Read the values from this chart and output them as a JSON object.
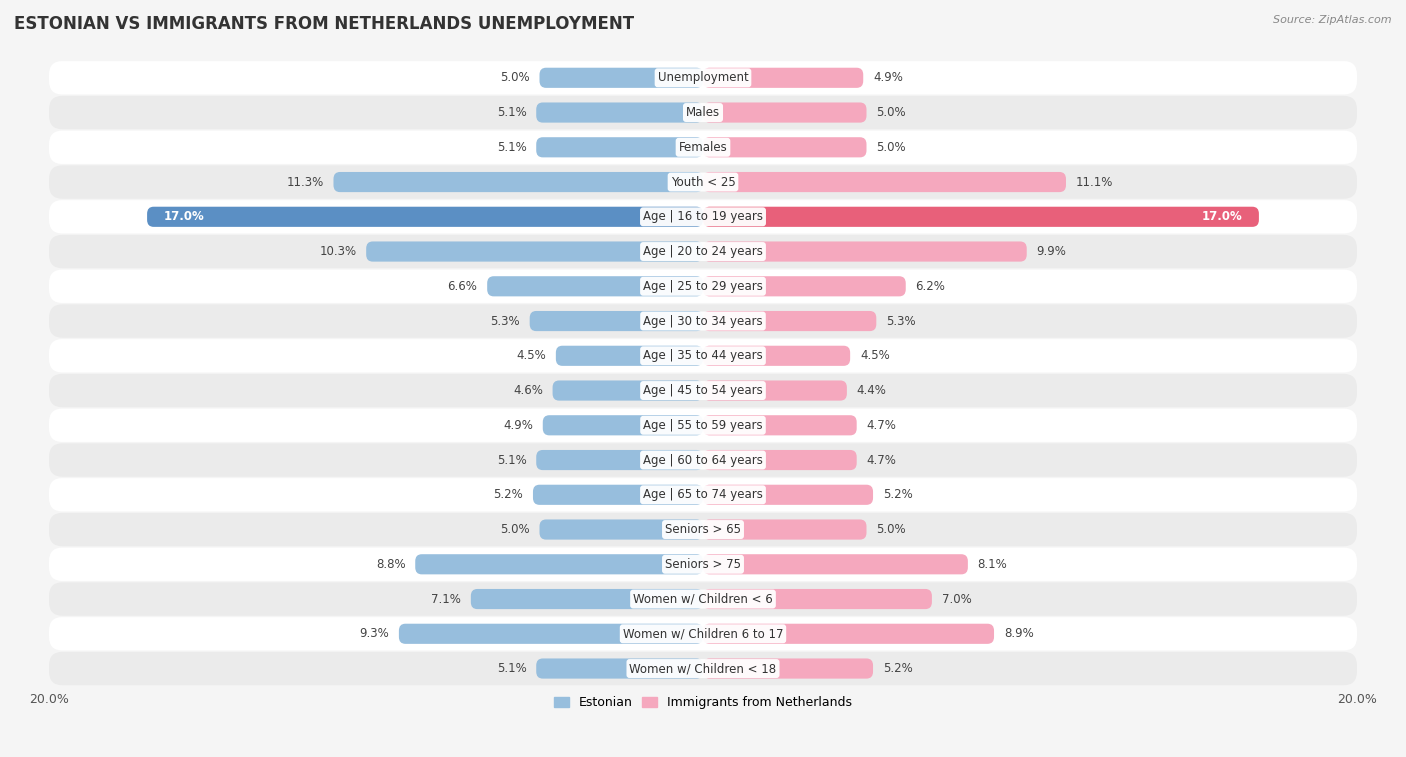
{
  "title": "ESTONIAN VS IMMIGRANTS FROM NETHERLANDS UNEMPLOYMENT",
  "source": "Source: ZipAtlas.com",
  "categories": [
    "Unemployment",
    "Males",
    "Females",
    "Youth < 25",
    "Age | 16 to 19 years",
    "Age | 20 to 24 years",
    "Age | 25 to 29 years",
    "Age | 30 to 34 years",
    "Age | 35 to 44 years",
    "Age | 45 to 54 years",
    "Age | 55 to 59 years",
    "Age | 60 to 64 years",
    "Age | 65 to 74 years",
    "Seniors > 65",
    "Seniors > 75",
    "Women w/ Children < 6",
    "Women w/ Children 6 to 17",
    "Women w/ Children < 18"
  ],
  "estonian": [
    5.0,
    5.1,
    5.1,
    11.3,
    17.0,
    10.3,
    6.6,
    5.3,
    4.5,
    4.6,
    4.9,
    5.1,
    5.2,
    5.0,
    8.8,
    7.1,
    9.3,
    5.1
  ],
  "immigrants": [
    4.9,
    5.0,
    5.0,
    11.1,
    17.0,
    9.9,
    6.2,
    5.3,
    4.5,
    4.4,
    4.7,
    4.7,
    5.2,
    5.0,
    8.1,
    7.0,
    8.9,
    5.2
  ],
  "estonian_color": "#97bedd",
  "immigrant_color": "#f5a8be",
  "highlight_estonian_color": "#5b8fc4",
  "highlight_immigrant_color": "#e8607a",
  "highlight_row": 4,
  "axis_limit": 20.0,
  "row_bg_white": "#ffffff",
  "row_bg_gray": "#ebebeb",
  "bar_height": 0.58,
  "label_fontsize": 9,
  "title_fontsize": 12,
  "category_fontsize": 8.5,
  "value_fontsize": 8.5,
  "legend_estonian": "Estonian",
  "legend_immigrants": "Immigrants from Netherlands"
}
